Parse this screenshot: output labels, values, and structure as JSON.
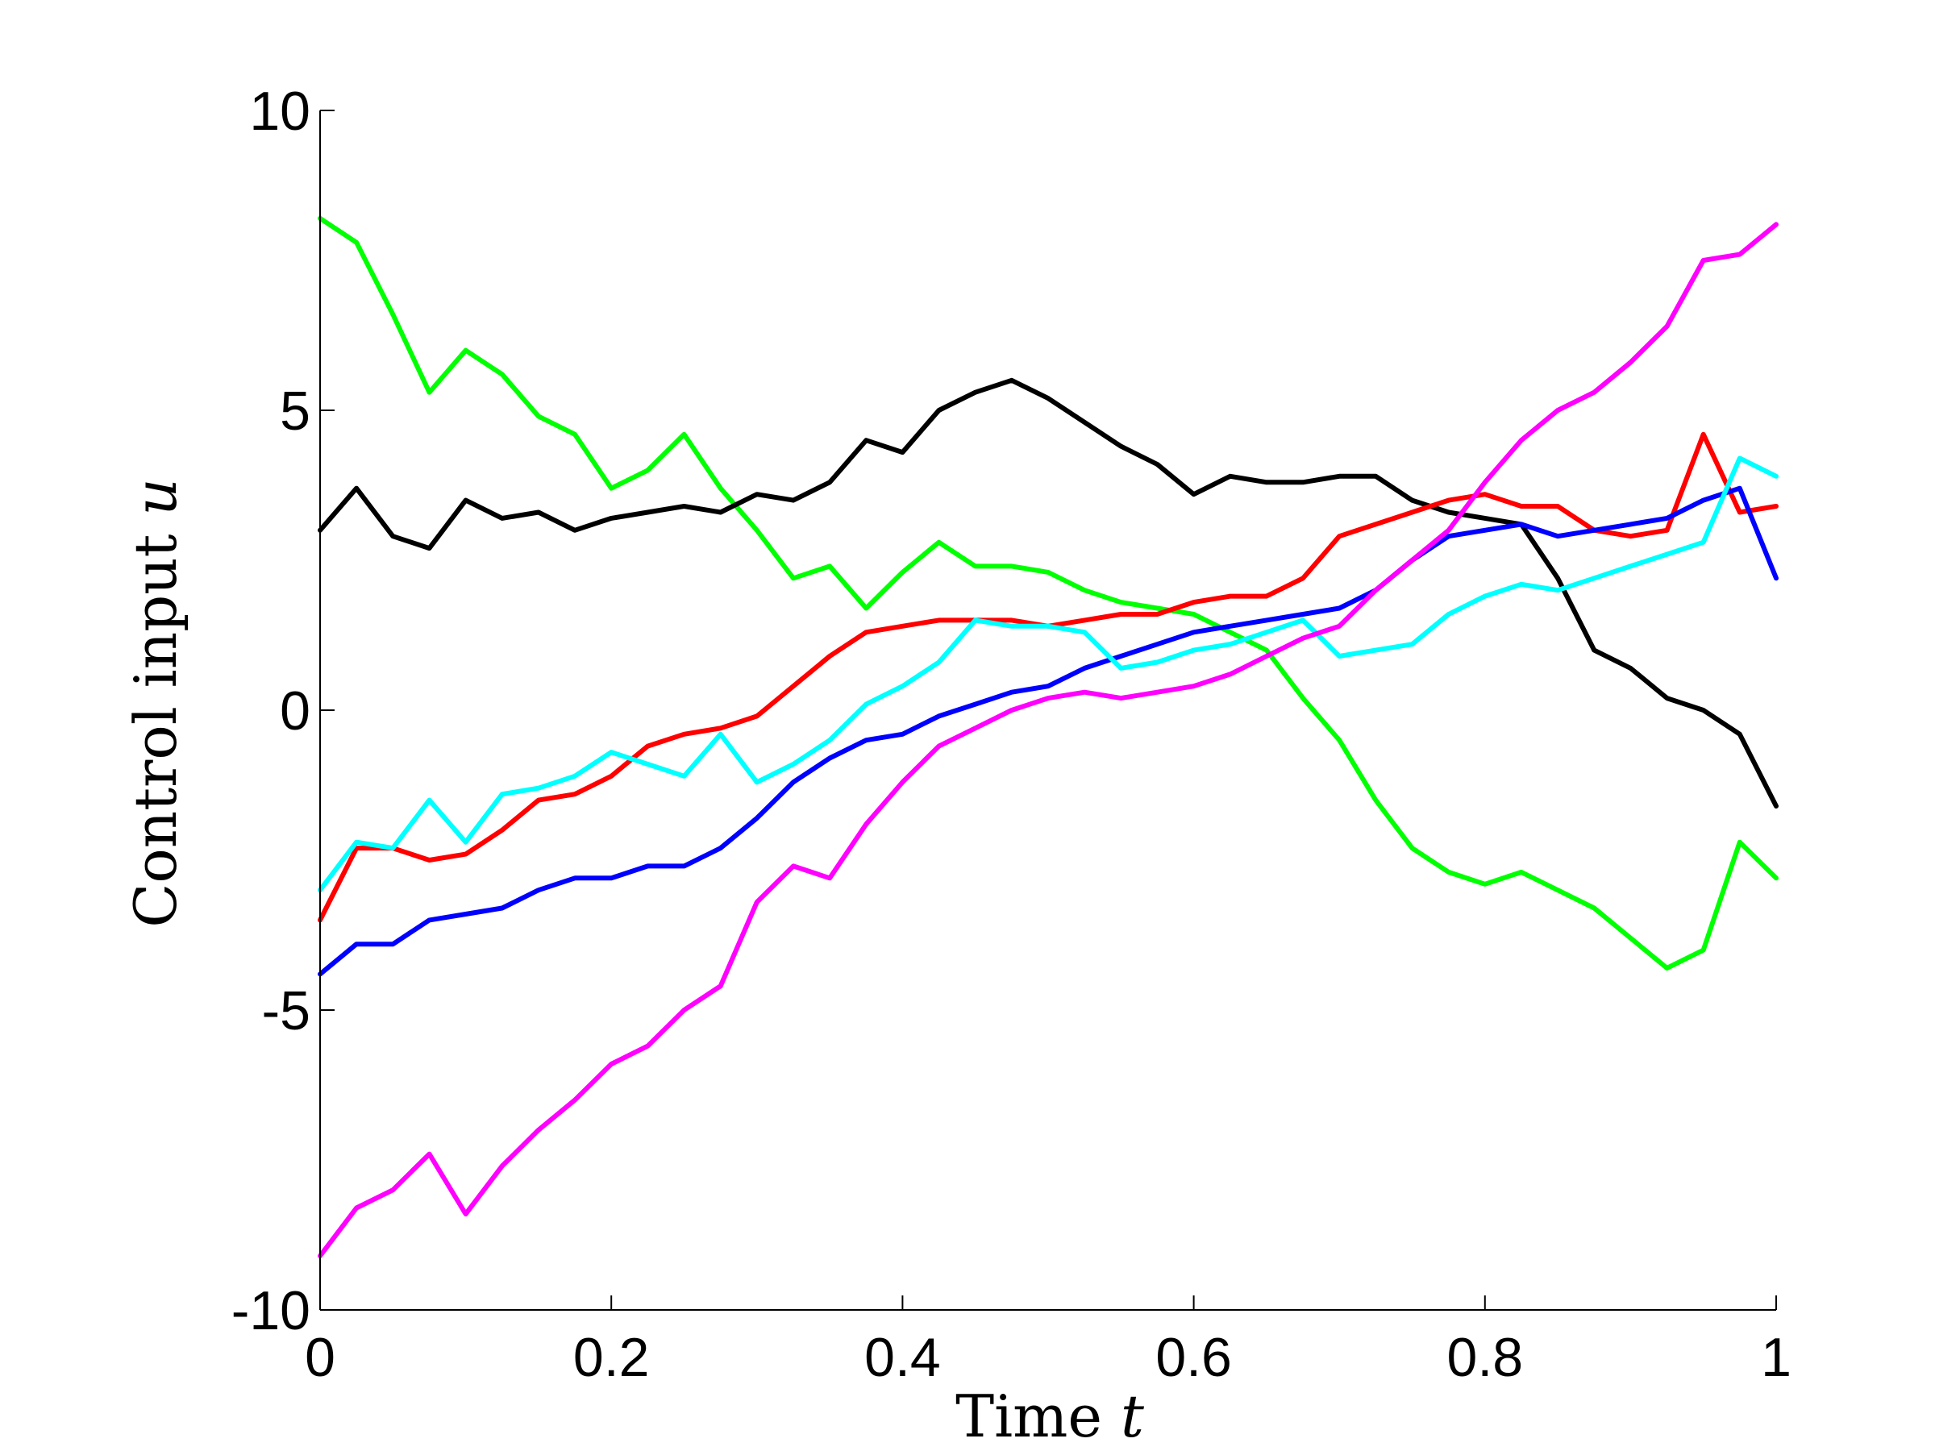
{
  "chart_data": {
    "type": "line",
    "title": "",
    "xlabel": {
      "text": "Time ",
      "symbol": "t"
    },
    "ylabel": {
      "text": "Control input ",
      "symbol": "u"
    },
    "xlim": [
      0,
      1
    ],
    "ylim": [
      -10,
      10
    ],
    "xticks": [
      {
        "value": 0,
        "label": "0"
      },
      {
        "value": 0.2,
        "label": "0.2"
      },
      {
        "value": 0.4,
        "label": "0.4"
      },
      {
        "value": 0.6,
        "label": "0.6"
      },
      {
        "value": 0.8,
        "label": "0.8"
      },
      {
        "value": 1,
        "label": "1"
      }
    ],
    "yticks": [
      {
        "value": -10,
        "label": "-10"
      },
      {
        "value": -5,
        "label": "-5"
      },
      {
        "value": 0,
        "label": "0"
      },
      {
        "value": 5,
        "label": "5"
      },
      {
        "value": 10,
        "label": "10"
      }
    ],
    "grid": false,
    "legend": "none",
    "x": [
      0,
      0.025,
      0.05,
      0.075,
      0.1,
      0.125,
      0.15,
      0.175,
      0.2,
      0.225,
      0.25,
      0.275,
      0.3,
      0.325,
      0.35,
      0.375,
      0.4,
      0.425,
      0.45,
      0.475,
      0.5,
      0.525,
      0.55,
      0.575,
      0.6,
      0.625,
      0.65,
      0.675,
      0.7,
      0.725,
      0.75,
      0.775,
      0.8,
      0.825,
      0.85,
      0.875,
      0.9,
      0.925,
      0.95,
      0.975,
      1
    ],
    "series": [
      {
        "color": "#00ff00",
        "values": [
          8.2,
          7.8,
          6.6,
          5.3,
          6.0,
          5.6,
          4.9,
          4.6,
          3.7,
          4.0,
          4.6,
          3.7,
          3.0,
          2.2,
          2.4,
          1.7,
          2.3,
          2.8,
          2.4,
          2.4,
          2.3,
          2.0,
          1.8,
          1.7,
          1.6,
          1.3,
          1.0,
          0.2,
          -0.5,
          -1.5,
          -2.3,
          -2.7,
          -2.9,
          -2.7,
          -3.0,
          -3.3,
          -3.8,
          -4.3,
          -4.0,
          -2.2,
          -2.8
        ]
      },
      {
        "color": "#000000",
        "values": [
          3.0,
          3.7,
          2.9,
          2.7,
          3.5,
          3.2,
          3.3,
          3.0,
          3.2,
          3.3,
          3.4,
          3.3,
          3.6,
          3.5,
          3.8,
          4.5,
          4.3,
          5.0,
          5.3,
          5.5,
          5.2,
          4.8,
          4.4,
          4.1,
          3.6,
          3.9,
          3.8,
          3.8,
          3.9,
          3.9,
          3.5,
          3.3,
          3.2,
          3.1,
          2.2,
          1.0,
          0.7,
          0.2,
          0.0,
          -0.4,
          -1.6
        ]
      },
      {
        "color": "#ff0000",
        "values": [
          -3.5,
          -2.3,
          -2.3,
          -2.5,
          -2.4,
          -2.0,
          -1.5,
          -1.4,
          -1.1,
          -0.6,
          -0.4,
          -0.3,
          -0.1,
          0.4,
          0.9,
          1.3,
          1.4,
          1.5,
          1.5,
          1.5,
          1.4,
          1.5,
          1.6,
          1.6,
          1.8,
          1.9,
          1.9,
          2.2,
          2.9,
          3.1,
          3.3,
          3.5,
          3.6,
          3.4,
          3.4,
          3.0,
          2.9,
          3.0,
          4.6,
          3.3,
          3.4
        ]
      },
      {
        "color": "#0000ff",
        "values": [
          -4.4,
          -3.9,
          -3.9,
          -3.5,
          -3.4,
          -3.3,
          -3.0,
          -2.8,
          -2.8,
          -2.6,
          -2.6,
          -2.3,
          -1.8,
          -1.2,
          -0.8,
          -0.5,
          -0.4,
          -0.1,
          0.1,
          0.3,
          0.4,
          0.7,
          0.9,
          1.1,
          1.3,
          1.4,
          1.5,
          1.6,
          1.7,
          2.0,
          2.5,
          2.9,
          3.0,
          3.1,
          2.9,
          3.0,
          3.1,
          3.2,
          3.5,
          3.7,
          2.2
        ]
      },
      {
        "color": "#00ffff",
        "values": [
          -3.0,
          -2.2,
          -2.3,
          -1.5,
          -2.2,
          -1.4,
          -1.3,
          -1.1,
          -0.7,
          -0.9,
          -1.1,
          -0.4,
          -1.2,
          -0.9,
          -0.5,
          0.1,
          0.4,
          0.8,
          1.5,
          1.4,
          1.4,
          1.3,
          0.7,
          0.8,
          1.0,
          1.1,
          1.3,
          1.5,
          0.9,
          1.0,
          1.1,
          1.6,
          1.9,
          2.1,
          2.0,
          2.2,
          2.4,
          2.6,
          2.8,
          4.2,
          3.9
        ]
      },
      {
        "color": "#ff00ff",
        "values": [
          -9.1,
          -8.3,
          -8.0,
          -7.4,
          -8.4,
          -7.6,
          -7.0,
          -6.5,
          -5.9,
          -5.6,
          -5.0,
          -4.6,
          -3.2,
          -2.6,
          -2.8,
          -1.9,
          -1.2,
          -0.6,
          -0.3,
          0.0,
          0.2,
          0.3,
          0.2,
          0.3,
          0.4,
          0.6,
          0.9,
          1.2,
          1.4,
          2.0,
          2.5,
          3.0,
          3.8,
          4.5,
          5.0,
          5.3,
          5.8,
          6.4,
          7.5,
          7.6,
          8.1
        ]
      }
    ]
  }
}
